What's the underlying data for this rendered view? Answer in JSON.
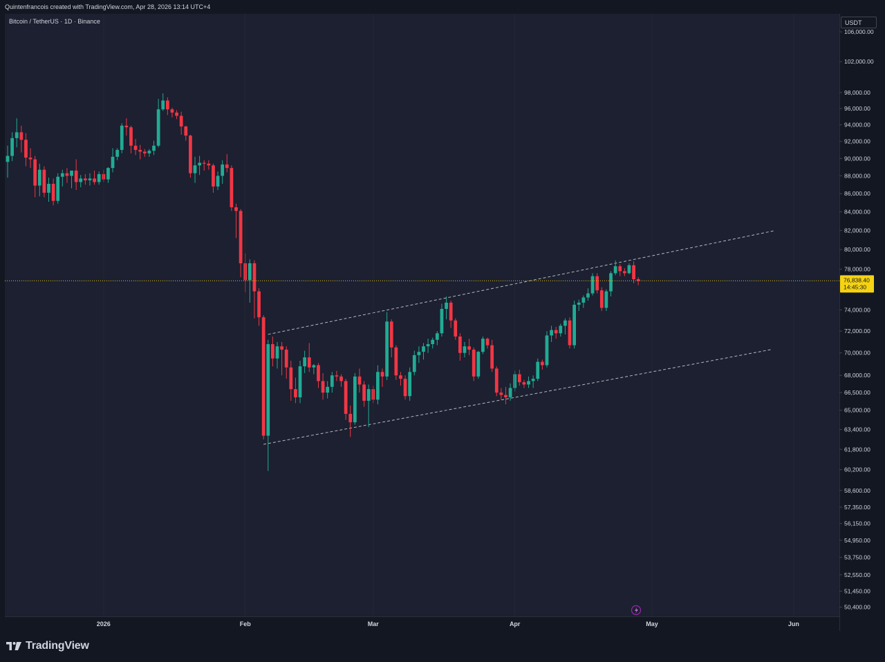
{
  "header": {
    "credit": "Quintenfrancois created with TradingView.com, Apr 28, 2026 13:14 UTC+4"
  },
  "symbol": {
    "title": "Bitcoin / TetherUS · 1D · Binance"
  },
  "price_axis": {
    "currency": "USDT"
  },
  "last_price": {
    "value": "76,838.40",
    "countdown": "14:45:30"
  },
  "footer": {
    "brand": "TradingView"
  },
  "colors": {
    "up": "#22ab94",
    "down": "#f23645",
    "last_price_tag": "#f5d312",
    "background": "#1c2030",
    "channel_lines": "#d1d4dc"
  },
  "chart_data": {
    "type": "candlestick",
    "title": "Bitcoin / TetherUS · 1D · Binance",
    "y_axis": {
      "scale": "log",
      "range": [
        49800,
        108500
      ],
      "tick_labels": [
        "106,000.00",
        "102,000.00",
        "98,000.00",
        "96,000.00",
        "94,000.00",
        "92,000.00",
        "90,000.00",
        "88,000.00",
        "86,000.00",
        "84,000.00",
        "82,000.00",
        "80,000.00",
        "78,000.00",
        "74,000.00",
        "72,000.00",
        "70,000.00",
        "68,000.00",
        "66,500.00",
        "65,000.00",
        "63,400.00",
        "61,800.00",
        "60,200.00",
        "58,600.00",
        "57,350.00",
        "56,150.00",
        "54,950.00",
        "53,750.00",
        "52,550.00",
        "51,450.00",
        "50,400.00"
      ]
    },
    "x_axis": {
      "range": [
        "2025-12-11",
        "2026-06-11"
      ],
      "tick_labels": [
        {
          "label": "2026",
          "date": "2026-01-01"
        },
        {
          "label": "Feb",
          "date": "2026-02-01"
        },
        {
          "label": "Mar",
          "date": "2026-03-01"
        },
        {
          "label": "Apr",
          "date": "2026-04-01"
        },
        {
          "label": "May",
          "date": "2026-05-01"
        },
        {
          "label": "Jun",
          "date": "2026-06-01"
        }
      ]
    },
    "grid": false,
    "last_price": 76838.4,
    "candles": [
      {
        "date": "2025-12-11",
        "o": 89600,
        "h": 91500,
        "l": 87800,
        "c": 90300
      },
      {
        "date": "2025-12-12",
        "o": 90300,
        "h": 93100,
        "l": 89700,
        "c": 92400
      },
      {
        "date": "2025-12-13",
        "o": 92400,
        "h": 94800,
        "l": 91300,
        "c": 93100
      },
      {
        "date": "2025-12-14",
        "o": 93100,
        "h": 93900,
        "l": 90700,
        "c": 92200
      },
      {
        "date": "2025-12-15",
        "o": 92200,
        "h": 93000,
        "l": 89100,
        "c": 90100
      },
      {
        "date": "2025-12-16",
        "o": 90100,
        "h": 91200,
        "l": 88900,
        "c": 89900
      },
      {
        "date": "2025-12-17",
        "o": 89900,
        "h": 90300,
        "l": 85600,
        "c": 86900
      },
      {
        "date": "2025-12-18",
        "o": 86900,
        "h": 89400,
        "l": 85700,
        "c": 88700
      },
      {
        "date": "2025-12-19",
        "o": 88700,
        "h": 89100,
        "l": 85600,
        "c": 86100
      },
      {
        "date": "2025-12-20",
        "o": 86100,
        "h": 87800,
        "l": 85100,
        "c": 87100
      },
      {
        "date": "2025-12-21",
        "o": 87100,
        "h": 87700,
        "l": 84700,
        "c": 85200
      },
      {
        "date": "2025-12-22",
        "o": 85200,
        "h": 88300,
        "l": 84900,
        "c": 87900
      },
      {
        "date": "2025-12-23",
        "o": 87900,
        "h": 88700,
        "l": 86800,
        "c": 88300
      },
      {
        "date": "2025-12-24",
        "o": 88300,
        "h": 88900,
        "l": 87200,
        "c": 88000
      },
      {
        "date": "2025-12-25",
        "o": 88000,
        "h": 88500,
        "l": 86600,
        "c": 88600
      },
      {
        "date": "2025-12-26",
        "o": 88600,
        "h": 89900,
        "l": 86400,
        "c": 87300
      },
      {
        "date": "2025-12-27",
        "o": 87300,
        "h": 88100,
        "l": 86700,
        "c": 87700
      },
      {
        "date": "2025-12-28",
        "o": 87700,
        "h": 88200,
        "l": 87000,
        "c": 87500
      },
      {
        "date": "2025-12-29",
        "o": 87500,
        "h": 88300,
        "l": 86900,
        "c": 87700
      },
      {
        "date": "2025-12-30",
        "o": 87700,
        "h": 88600,
        "l": 87000,
        "c": 87300
      },
      {
        "date": "2025-12-31",
        "o": 87300,
        "h": 88500,
        "l": 87000,
        "c": 88200
      },
      {
        "date": "2026-01-01",
        "o": 88200,
        "h": 88700,
        "l": 87300,
        "c": 87600
      },
      {
        "date": "2026-01-02",
        "o": 87600,
        "h": 89000,
        "l": 87200,
        "c": 88900
      },
      {
        "date": "2026-01-03",
        "o": 88900,
        "h": 91200,
        "l": 88400,
        "c": 90200
      },
      {
        "date": "2026-01-04",
        "o": 90200,
        "h": 91200,
        "l": 89800,
        "c": 91000
      },
      {
        "date": "2026-01-05",
        "o": 91000,
        "h": 94200,
        "l": 90600,
        "c": 93900
      },
      {
        "date": "2026-01-06",
        "o": 93900,
        "h": 94800,
        "l": 92700,
        "c": 93700
      },
      {
        "date": "2026-01-07",
        "o": 93700,
        "h": 93900,
        "l": 90600,
        "c": 91500
      },
      {
        "date": "2026-01-08",
        "o": 91500,
        "h": 92300,
        "l": 90400,
        "c": 91000
      },
      {
        "date": "2026-01-09",
        "o": 91000,
        "h": 91600,
        "l": 89900,
        "c": 90800
      },
      {
        "date": "2026-01-10",
        "o": 90800,
        "h": 91100,
        "l": 90200,
        "c": 90600
      },
      {
        "date": "2026-01-11",
        "o": 90600,
        "h": 91100,
        "l": 90200,
        "c": 90900
      },
      {
        "date": "2026-01-12",
        "o": 90900,
        "h": 92100,
        "l": 90400,
        "c": 91500
      },
      {
        "date": "2026-01-13",
        "o": 91500,
        "h": 97200,
        "l": 91300,
        "c": 95900
      },
      {
        "date": "2026-01-14",
        "o": 95900,
        "h": 97900,
        "l": 95700,
        "c": 97000
      },
      {
        "date": "2026-01-15",
        "o": 97000,
        "h": 97400,
        "l": 95200,
        "c": 95900
      },
      {
        "date": "2026-01-16",
        "o": 95900,
        "h": 96100,
        "l": 94900,
        "c": 95500
      },
      {
        "date": "2026-01-17",
        "o": 95500,
        "h": 95800,
        "l": 94700,
        "c": 95100
      },
      {
        "date": "2026-01-18",
        "o": 95100,
        "h": 95600,
        "l": 92800,
        "c": 93800
      },
      {
        "date": "2026-01-19",
        "o": 93800,
        "h": 93900,
        "l": 92100,
        "c": 92700
      },
      {
        "date": "2026-01-20",
        "o": 92700,
        "h": 92800,
        "l": 87800,
        "c": 88300
      },
      {
        "date": "2026-01-21",
        "o": 88300,
        "h": 90200,
        "l": 87200,
        "c": 89200
      },
      {
        "date": "2026-01-22",
        "o": 89200,
        "h": 90300,
        "l": 88100,
        "c": 89500
      },
      {
        "date": "2026-01-23",
        "o": 89500,
        "h": 89800,
        "l": 88600,
        "c": 89400
      },
      {
        "date": "2026-01-24",
        "o": 89400,
        "h": 89800,
        "l": 88700,
        "c": 89200
      },
      {
        "date": "2026-01-25",
        "o": 89200,
        "h": 89400,
        "l": 86100,
        "c": 86800
      },
      {
        "date": "2026-01-26",
        "o": 86800,
        "h": 88500,
        "l": 86400,
        "c": 88000
      },
      {
        "date": "2026-01-27",
        "o": 88000,
        "h": 89800,
        "l": 87100,
        "c": 89300
      },
      {
        "date": "2026-01-28",
        "o": 89300,
        "h": 90500,
        "l": 88400,
        "c": 88900
      },
      {
        "date": "2026-01-29",
        "o": 88900,
        "h": 89200,
        "l": 84100,
        "c": 84500
      },
      {
        "date": "2026-01-30",
        "o": 84500,
        "h": 84900,
        "l": 81200,
        "c": 84100
      },
      {
        "date": "2026-01-31",
        "o": 84100,
        "h": 84300,
        "l": 77200,
        "c": 78600
      },
      {
        "date": "2026-02-01",
        "o": 78600,
        "h": 79600,
        "l": 75700,
        "c": 76900
      },
      {
        "date": "2026-02-02",
        "o": 76900,
        "h": 79000,
        "l": 74700,
        "c": 78600
      },
      {
        "date": "2026-02-03",
        "o": 78600,
        "h": 78900,
        "l": 73200,
        "c": 75800
      },
      {
        "date": "2026-02-04",
        "o": 75800,
        "h": 76100,
        "l": 72500,
        "c": 73300
      },
      {
        "date": "2026-02-05",
        "o": 73300,
        "h": 73500,
        "l": 62600,
        "c": 62900
      },
      {
        "date": "2026-02-06",
        "o": 62900,
        "h": 71200,
        "l": 60100,
        "c": 70800
      },
      {
        "date": "2026-02-07",
        "o": 70800,
        "h": 71500,
        "l": 68800,
        "c": 69500
      },
      {
        "date": "2026-02-08",
        "o": 69500,
        "h": 71000,
        "l": 68600,
        "c": 70600
      },
      {
        "date": "2026-02-09",
        "o": 70600,
        "h": 71000,
        "l": 68000,
        "c": 70300
      },
      {
        "date": "2026-02-10",
        "o": 70300,
        "h": 70600,
        "l": 67700,
        "c": 68700
      },
      {
        "date": "2026-02-11",
        "o": 68700,
        "h": 69300,
        "l": 65800,
        "c": 66800
      },
      {
        "date": "2026-02-12",
        "o": 66800,
        "h": 67800,
        "l": 65600,
        "c": 66100
      },
      {
        "date": "2026-02-13",
        "o": 66100,
        "h": 69300,
        "l": 65600,
        "c": 68800
      },
      {
        "date": "2026-02-14",
        "o": 68800,
        "h": 70200,
        "l": 68200,
        "c": 69600
      },
      {
        "date": "2026-02-15",
        "o": 69600,
        "h": 70900,
        "l": 68300,
        "c": 68700
      },
      {
        "date": "2026-02-16",
        "o": 68700,
        "h": 69000,
        "l": 68100,
        "c": 68900
      },
      {
        "date": "2026-02-17",
        "o": 68900,
        "h": 69100,
        "l": 66900,
        "c": 67500
      },
      {
        "date": "2026-02-18",
        "o": 67500,
        "h": 68200,
        "l": 65900,
        "c": 66500
      },
      {
        "date": "2026-02-19",
        "o": 66500,
        "h": 67500,
        "l": 66000,
        "c": 67000
      },
      {
        "date": "2026-02-20",
        "o": 67000,
        "h": 68300,
        "l": 66500,
        "c": 68000
      },
      {
        "date": "2026-02-21",
        "o": 68000,
        "h": 68400,
        "l": 67500,
        "c": 67900
      },
      {
        "date": "2026-02-22",
        "o": 67900,
        "h": 68100,
        "l": 67000,
        "c": 67500
      },
      {
        "date": "2026-02-23",
        "o": 67500,
        "h": 67700,
        "l": 64200,
        "c": 64700
      },
      {
        "date": "2026-02-24",
        "o": 64700,
        "h": 65400,
        "l": 62800,
        "c": 64000
      },
      {
        "date": "2026-02-25",
        "o": 64000,
        "h": 68200,
        "l": 63800,
        "c": 67900
      },
      {
        "date": "2026-02-26",
        "o": 67900,
        "h": 68600,
        "l": 66500,
        "c": 67200
      },
      {
        "date": "2026-02-27",
        "o": 67200,
        "h": 67500,
        "l": 65300,
        "c": 65800
      },
      {
        "date": "2026-02-28",
        "o": 65800,
        "h": 67200,
        "l": 63600,
        "c": 66800
      },
      {
        "date": "2026-03-01",
        "o": 66800,
        "h": 67100,
        "l": 65600,
        "c": 65900
      },
      {
        "date": "2026-03-02",
        "o": 65900,
        "h": 68900,
        "l": 65500,
        "c": 68300
      },
      {
        "date": "2026-03-03",
        "o": 68300,
        "h": 68600,
        "l": 67000,
        "c": 67900
      },
      {
        "date": "2026-03-04",
        "o": 67900,
        "h": 73800,
        "l": 67600,
        "c": 72900
      },
      {
        "date": "2026-03-05",
        "o": 72900,
        "h": 73100,
        "l": 69600,
        "c": 70500
      },
      {
        "date": "2026-03-06",
        "o": 70500,
        "h": 70700,
        "l": 67600,
        "c": 68000
      },
      {
        "date": "2026-03-07",
        "o": 68000,
        "h": 68300,
        "l": 67100,
        "c": 67700
      },
      {
        "date": "2026-03-08",
        "o": 67700,
        "h": 68000,
        "l": 65900,
        "c": 66200
      },
      {
        "date": "2026-03-09",
        "o": 66200,
        "h": 68700,
        "l": 65800,
        "c": 68300
      },
      {
        "date": "2026-03-10",
        "o": 68300,
        "h": 70200,
        "l": 68000,
        "c": 69800
      },
      {
        "date": "2026-03-11",
        "o": 69800,
        "h": 70600,
        "l": 69100,
        "c": 70100
      },
      {
        "date": "2026-03-12",
        "o": 70100,
        "h": 70900,
        "l": 69400,
        "c": 70600
      },
      {
        "date": "2026-03-13",
        "o": 70600,
        "h": 71300,
        "l": 70000,
        "c": 70800
      },
      {
        "date": "2026-03-14",
        "o": 70800,
        "h": 71400,
        "l": 70400,
        "c": 71200
      },
      {
        "date": "2026-03-15",
        "o": 71200,
        "h": 72000,
        "l": 70700,
        "c": 71800
      },
      {
        "date": "2026-03-16",
        "o": 71800,
        "h": 74600,
        "l": 71500,
        "c": 74100
      },
      {
        "date": "2026-03-17",
        "o": 74100,
        "h": 75300,
        "l": 73100,
        "c": 74700
      },
      {
        "date": "2026-03-18",
        "o": 74700,
        "h": 74900,
        "l": 72300,
        "c": 73000
      },
      {
        "date": "2026-03-19",
        "o": 73000,
        "h": 73200,
        "l": 71200,
        "c": 71500
      },
      {
        "date": "2026-03-20",
        "o": 71500,
        "h": 71800,
        "l": 69300,
        "c": 70000
      },
      {
        "date": "2026-03-21",
        "o": 70000,
        "h": 71000,
        "l": 69600,
        "c": 70600
      },
      {
        "date": "2026-03-22",
        "o": 70600,
        "h": 71300,
        "l": 69800,
        "c": 70300
      },
      {
        "date": "2026-03-23",
        "o": 70300,
        "h": 70500,
        "l": 67500,
        "c": 67900
      },
      {
        "date": "2026-03-24",
        "o": 67900,
        "h": 70200,
        "l": 67700,
        "c": 70100
      },
      {
        "date": "2026-03-25",
        "o": 70100,
        "h": 71500,
        "l": 69900,
        "c": 71300
      },
      {
        "date": "2026-03-26",
        "o": 71300,
        "h": 71400,
        "l": 70400,
        "c": 70700
      },
      {
        "date": "2026-03-27",
        "o": 70700,
        "h": 71200,
        "l": 68300,
        "c": 68600
      },
      {
        "date": "2026-03-28",
        "o": 68600,
        "h": 68800,
        "l": 66200,
        "c": 66500
      },
      {
        "date": "2026-03-29",
        "o": 66500,
        "h": 66900,
        "l": 65900,
        "c": 66300
      },
      {
        "date": "2026-03-30",
        "o": 66300,
        "h": 67000,
        "l": 65500,
        "c": 66100
      },
      {
        "date": "2026-03-31",
        "o": 66100,
        "h": 67300,
        "l": 65800,
        "c": 66900
      },
      {
        "date": "2026-04-01",
        "o": 66900,
        "h": 68400,
        "l": 66600,
        "c": 68100
      },
      {
        "date": "2026-04-02",
        "o": 68100,
        "h": 68500,
        "l": 67100,
        "c": 67400
      },
      {
        "date": "2026-04-03",
        "o": 67400,
        "h": 67600,
        "l": 66900,
        "c": 67200
      },
      {
        "date": "2026-04-04",
        "o": 67200,
        "h": 67900,
        "l": 66900,
        "c": 67500
      },
      {
        "date": "2026-04-05",
        "o": 67500,
        "h": 68000,
        "l": 66900,
        "c": 67700
      },
      {
        "date": "2026-04-06",
        "o": 67700,
        "h": 69500,
        "l": 67500,
        "c": 69200
      },
      {
        "date": "2026-04-07",
        "o": 69200,
        "h": 69400,
        "l": 68500,
        "c": 68900
      },
      {
        "date": "2026-04-08",
        "o": 68900,
        "h": 72000,
        "l": 68700,
        "c": 71600
      },
      {
        "date": "2026-04-09",
        "o": 71600,
        "h": 72500,
        "l": 71000,
        "c": 72100
      },
      {
        "date": "2026-04-10",
        "o": 72100,
        "h": 72400,
        "l": 71300,
        "c": 71800
      },
      {
        "date": "2026-04-11",
        "o": 71800,
        "h": 72700,
        "l": 71500,
        "c": 72500
      },
      {
        "date": "2026-04-12",
        "o": 72500,
        "h": 73200,
        "l": 71700,
        "c": 73000
      },
      {
        "date": "2026-04-13",
        "o": 73000,
        "h": 73300,
        "l": 70400,
        "c": 70700
      },
      {
        "date": "2026-04-14",
        "o": 70700,
        "h": 74900,
        "l": 70400,
        "c": 74500
      },
      {
        "date": "2026-04-15",
        "o": 74500,
        "h": 75000,
        "l": 73900,
        "c": 74700
      },
      {
        "date": "2026-04-16",
        "o": 74700,
        "h": 75400,
        "l": 74200,
        "c": 75200
      },
      {
        "date": "2026-04-17",
        "o": 75200,
        "h": 76100,
        "l": 74900,
        "c": 75600
      },
      {
        "date": "2026-04-18",
        "o": 75600,
        "h": 77600,
        "l": 75400,
        "c": 77300
      },
      {
        "date": "2026-04-19",
        "o": 77300,
        "h": 77600,
        "l": 75600,
        "c": 75900
      },
      {
        "date": "2026-04-20",
        "o": 75900,
        "h": 76200,
        "l": 73900,
        "c": 74200
      },
      {
        "date": "2026-04-21",
        "o": 74200,
        "h": 76000,
        "l": 73900,
        "c": 75800
      },
      {
        "date": "2026-04-22",
        "o": 75800,
        "h": 77800,
        "l": 75300,
        "c": 77600
      },
      {
        "date": "2026-04-23",
        "o": 77600,
        "h": 78900,
        "l": 77400,
        "c": 78300
      },
      {
        "date": "2026-04-24",
        "o": 78300,
        "h": 78500,
        "l": 77300,
        "c": 77800
      },
      {
        "date": "2026-04-25",
        "o": 77800,
        "h": 78100,
        "l": 77300,
        "c": 77600
      },
      {
        "date": "2026-04-26",
        "o": 77600,
        "h": 78600,
        "l": 77500,
        "c": 78400
      },
      {
        "date": "2026-04-27",
        "o": 78400,
        "h": 78800,
        "l": 76600,
        "c": 77000
      },
      {
        "date": "2026-04-28",
        "o": 77000,
        "h": 77200,
        "l": 76400,
        "c": 76838.4
      }
    ],
    "drawings": [
      {
        "type": "dashed-line",
        "from": {
          "date": "2026-02-06",
          "price": 71700
        },
        "to": {
          "date": "2026-05-28",
          "price": 82000
        }
      },
      {
        "type": "dashed-line",
        "from": {
          "date": "2026-02-05",
          "price": 62200
        },
        "to": {
          "date": "2026-05-27",
          "price": 70300
        }
      }
    ]
  }
}
